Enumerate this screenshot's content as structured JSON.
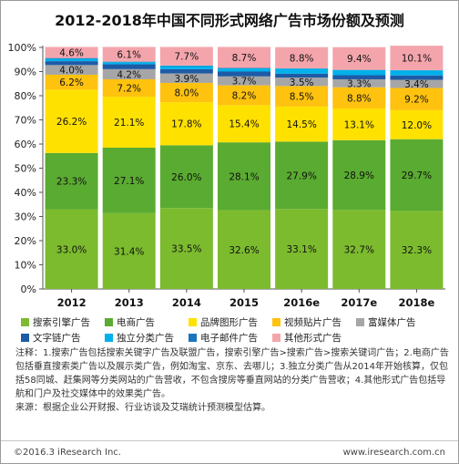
{
  "title": "2012-2018年中国不同形式网络广告市场份额及预测",
  "chart_data": {
    "type": "bar",
    "stacked": true,
    "categories": [
      "2012",
      "2013",
      "2014",
      "2015",
      "2016e",
      "2017e",
      "2018e"
    ],
    "yticks": [
      "0%",
      "10%",
      "20%",
      "30%",
      "40%",
      "50%",
      "60%",
      "70%",
      "80%",
      "90%",
      "100%"
    ],
    "ylim": [
      0,
      100
    ],
    "grid": false,
    "legend_position": "bottom",
    "series": [
      {
        "name": "搜索引擎广告",
        "color": "#7cbb2e",
        "values": [
          33.0,
          31.4,
          33.5,
          32.6,
          33.1,
          32.7,
          32.3
        ],
        "labels": [
          "33.0%",
          "31.4%",
          "33.5%",
          "32.6%",
          "33.1%",
          "32.7%",
          "32.3%"
        ]
      },
      {
        "name": "电商广告",
        "color": "#5aab31",
        "values": [
          23.3,
          27.1,
          26.0,
          28.1,
          27.9,
          28.9,
          29.7
        ],
        "labels": [
          "23.3%",
          "27.1%",
          "26.0%",
          "28.1%",
          "27.9%",
          "28.9%",
          "29.7%"
        ]
      },
      {
        "name": "品牌图形广告",
        "color": "#ffe100",
        "values": [
          26.2,
          21.1,
          17.8,
          15.4,
          14.5,
          13.1,
          12.0
        ],
        "labels": [
          "26.2%",
          "21.1%",
          "17.8%",
          "15.4%",
          "14.5%",
          "13.1%",
          "12.0%"
        ]
      },
      {
        "name": "视频贴片广告",
        "color": "#ffc20e",
        "values": [
          6.2,
          7.2,
          8.0,
          8.2,
          8.5,
          8.8,
          9.2
        ],
        "labels": [
          "6.2%",
          "7.2%",
          "8.0%",
          "8.2%",
          "8.5%",
          "8.8%",
          "9.2%"
        ]
      },
      {
        "name": "富媒体广告",
        "color": "#a6a6a6",
        "values": [
          4.0,
          4.2,
          3.9,
          3.7,
          3.5,
          3.3,
          3.4
        ],
        "labels": [
          "4.0%",
          "4.2%",
          "3.9%",
          "3.7%",
          "3.5%",
          "3.3%",
          "3.4%"
        ]
      },
      {
        "name": "文字链广告",
        "color": "#1e5aa5",
        "values": [
          1.6,
          2.0,
          1.8,
          2.0,
          1.6,
          1.7,
          1.8
        ],
        "labels": []
      },
      {
        "name": "独立分类广告",
        "color": "#00b0ea",
        "values": [
          1.0,
          0.9,
          1.3,
          1.3,
          2.1,
          2.1,
          2.1
        ],
        "labels": []
      },
      {
        "name": "电子邮件广告",
        "color": "#1a75bc",
        "values": [
          0.3,
          0.2,
          0.2,
          0.2,
          0.1,
          0.1,
          0.1
        ],
        "labels": []
      },
      {
        "name": "其他形式广告",
        "color": "#f4a5ac",
        "values": [
          4.6,
          6.1,
          7.7,
          8.7,
          8.8,
          9.4,
          10.1
        ],
        "labels": [
          "4.6%",
          "6.1%",
          "7.7%",
          "8.7%",
          "8.8%",
          "9.4%",
          "10.1%"
        ]
      }
    ],
    "legend_rows": [
      [
        0,
        1,
        2,
        3,
        4
      ],
      [
        5,
        6,
        7,
        8
      ]
    ]
  },
  "notes": [
    "注释：1.搜索广告包括搜索关键字广告及联盟广告，搜索引擎广告>搜索广告>搜索关键词广告；2.电商广告包括垂直搜索类广告以及展示类广告，例如淘宝、京东、去哪儿；3.独立分类广告从2014年开始核算，仅包括58同城、赶集网等分类网站的广告营收，不包含搜房等垂直网站的分类广告营收；4.其他形式广告包括导航和门户及社交媒体中的效果类广告。",
    "来源：根据企业公开财报、行业访谈及艾瑞统计预测模型估算。"
  ],
  "footer": {
    "copyright": "©2016.3 iResearch Inc.",
    "website": "www.iresearch.com.cn"
  }
}
